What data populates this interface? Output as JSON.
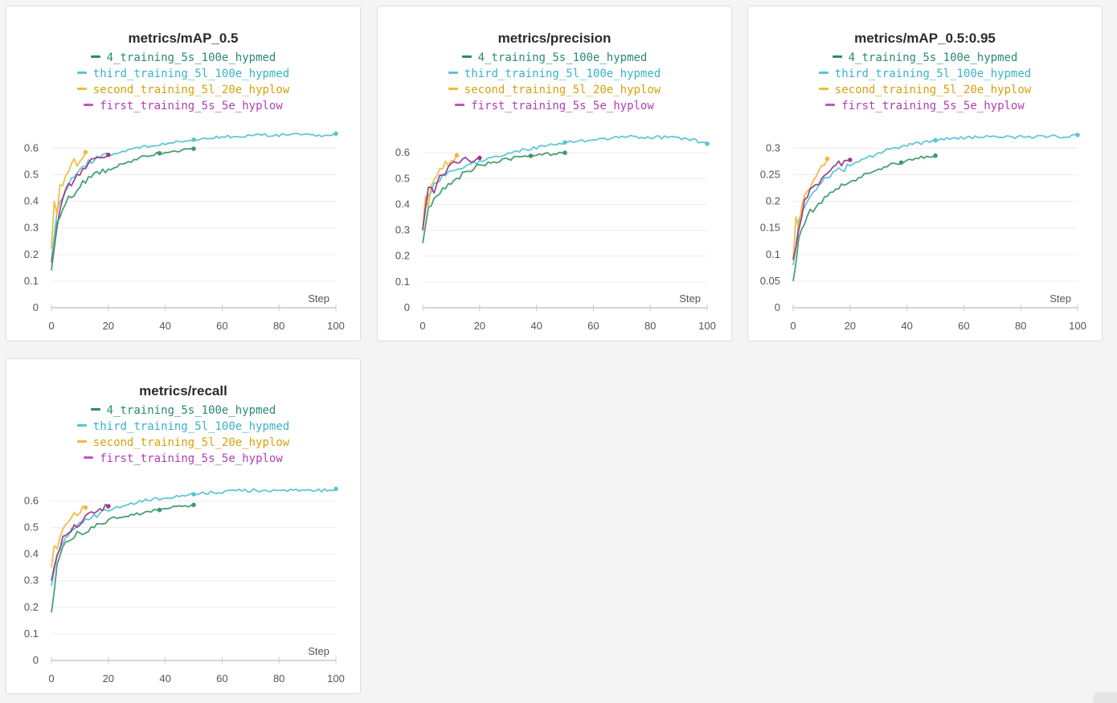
{
  "x_axis_label": "Step",
  "series_legend": [
    {
      "key": "s4",
      "name": "4_training_5s_100e_hypmed",
      "color": "#2a8a74",
      "line_color": "#3f9a6a"
    },
    {
      "key": "third",
      "name": "third_training_5l_100e_hypmed",
      "color": "#3ab2c8",
      "line_color": "#5ac4d2"
    },
    {
      "key": "second",
      "name": "second_training_5l_20e_hyplow",
      "color": "#d8a10c",
      "line_color": "#f0b93a"
    },
    {
      "key": "first",
      "name": "first_training_5s_5e_hyplow",
      "color": "#b040b4",
      "line_color": "#9b3a8c"
    }
  ],
  "chart_data": [
    {
      "type": "line",
      "title": "metrics/mAP_0.5",
      "xlabel": "Step",
      "ylabel": "",
      "xlim": [
        0,
        100
      ],
      "ylim": [
        0,
        0.68
      ],
      "xticks": [
        0,
        20,
        40,
        60,
        80,
        100
      ],
      "yticks": [
        0,
        0.1,
        0.2,
        0.3,
        0.4,
        0.5,
        0.6
      ],
      "yticklabels": [
        "0",
        "0.1",
        "0.2",
        "0.3",
        "0.4",
        "0.5",
        "0.6"
      ],
      "series": [
        {
          "name": "third_training_5l_100e_hypmed",
          "key": "third",
          "end_markers": [
            50,
            100
          ],
          "x": [
            0,
            2,
            4,
            6,
            8,
            10,
            12,
            15,
            18,
            20,
            25,
            30,
            35,
            40,
            45,
            50,
            55,
            60,
            65,
            70,
            75,
            80,
            85,
            90,
            95,
            100
          ],
          "y": [
            0.18,
            0.36,
            0.42,
            0.47,
            0.49,
            0.52,
            0.54,
            0.555,
            0.565,
            0.575,
            0.59,
            0.6,
            0.61,
            0.615,
            0.625,
            0.632,
            0.638,
            0.642,
            0.645,
            0.648,
            0.65,
            0.648,
            0.651,
            0.65,
            0.649,
            0.655
          ]
        },
        {
          "name": "second_training_5l_20e_hyplow",
          "key": "second",
          "end_markers": [
            12
          ],
          "x": [
            0,
            1,
            2,
            3,
            4,
            5,
            6,
            7,
            8,
            9,
            10,
            11,
            12
          ],
          "y": [
            0.22,
            0.4,
            0.36,
            0.45,
            0.47,
            0.49,
            0.5,
            0.53,
            0.55,
            0.54,
            0.56,
            0.57,
            0.585
          ]
        },
        {
          "name": "first_training_5s_5e_hyplow",
          "key": "first",
          "end_markers": [
            20
          ],
          "x": [
            0,
            2,
            4,
            6,
            8,
            10,
            12,
            14,
            16,
            18,
            20
          ],
          "y": [
            0.17,
            0.3,
            0.42,
            0.46,
            0.48,
            0.51,
            0.53,
            0.55,
            0.56,
            0.57,
            0.575
          ]
        },
        {
          "name": "4_training_5s_100e_hypmed",
          "key": "s4",
          "end_markers": [
            38,
            50
          ],
          "x": [
            0,
            2,
            4,
            6,
            8,
            10,
            12,
            14,
            16,
            18,
            20,
            25,
            30,
            35,
            40,
            45,
            50
          ],
          "y": [
            0.14,
            0.31,
            0.37,
            0.41,
            0.43,
            0.46,
            0.48,
            0.49,
            0.5,
            0.51,
            0.52,
            0.54,
            0.56,
            0.575,
            0.585,
            0.59,
            0.598
          ]
        }
      ]
    },
    {
      "type": "line",
      "title": "metrics/precision",
      "xlabel": "Step",
      "ylabel": "",
      "xlim": [
        0,
        100
      ],
      "ylim": [
        0,
        0.7
      ],
      "xticks": [
        0,
        20,
        40,
        60,
        80,
        100
      ],
      "yticks": [
        0,
        0.1,
        0.2,
        0.3,
        0.4,
        0.5,
        0.6
      ],
      "yticklabels": [
        "0",
        "0.1",
        "0.2",
        "0.3",
        "0.4",
        "0.5",
        "0.6"
      ],
      "series": [
        {
          "name": "third_training_5l_100e_hypmed",
          "key": "third",
          "end_markers": [
            50,
            100
          ],
          "x": [
            0,
            2,
            4,
            6,
            8,
            10,
            12,
            15,
            18,
            20,
            25,
            30,
            35,
            40,
            45,
            50,
            55,
            60,
            65,
            70,
            75,
            80,
            85,
            90,
            95,
            100
          ],
          "y": [
            0.3,
            0.44,
            0.47,
            0.5,
            0.51,
            0.53,
            0.54,
            0.55,
            0.56,
            0.57,
            0.58,
            0.6,
            0.61,
            0.62,
            0.63,
            0.64,
            0.645,
            0.65,
            0.655,
            0.66,
            0.662,
            0.658,
            0.66,
            0.655,
            0.65,
            0.635
          ]
        },
        {
          "name": "second_training_5l_20e_hyplow",
          "key": "second",
          "end_markers": [
            12
          ],
          "x": [
            0,
            1,
            2,
            3,
            4,
            5,
            6,
            7,
            8,
            9,
            10,
            11,
            12
          ],
          "y": [
            0.3,
            0.44,
            0.4,
            0.48,
            0.5,
            0.52,
            0.53,
            0.55,
            0.56,
            0.55,
            0.57,
            0.58,
            0.59
          ]
        },
        {
          "name": "first_training_5s_5e_hyplow",
          "key": "first",
          "end_markers": [
            20
          ],
          "x": [
            0,
            2,
            4,
            6,
            8,
            10,
            12,
            14,
            16,
            18,
            20
          ],
          "y": [
            0.3,
            0.47,
            0.45,
            0.52,
            0.53,
            0.55,
            0.56,
            0.57,
            0.58,
            0.57,
            0.58
          ]
        },
        {
          "name": "4_training_5s_100e_hypmed",
          "key": "s4",
          "end_markers": [
            38,
            50
          ],
          "x": [
            0,
            2,
            4,
            6,
            8,
            10,
            12,
            14,
            16,
            18,
            20,
            25,
            30,
            35,
            40,
            45,
            50
          ],
          "y": [
            0.25,
            0.38,
            0.42,
            0.45,
            0.47,
            0.49,
            0.5,
            0.52,
            0.53,
            0.54,
            0.55,
            0.565,
            0.575,
            0.585,
            0.59,
            0.595,
            0.6
          ]
        }
      ]
    },
    {
      "type": "line",
      "title": "metrics/mAP_0.5:0.95",
      "xlabel": "Step",
      "ylabel": "",
      "xlim": [
        0,
        100
      ],
      "ylim": [
        0,
        0.34
      ],
      "xticks": [
        0,
        20,
        40,
        60,
        80,
        100
      ],
      "yticks": [
        0,
        0.05,
        0.1,
        0.15,
        0.2,
        0.25,
        0.3
      ],
      "yticklabels": [
        "0",
        "0.05",
        "0.1",
        "0.15",
        "0.2",
        "0.25",
        "0.3"
      ],
      "series": [
        {
          "name": "third_training_5l_100e_hypmed",
          "key": "third",
          "end_markers": [
            50,
            100
          ],
          "x": [
            0,
            2,
            4,
            6,
            8,
            10,
            12,
            15,
            18,
            20,
            25,
            30,
            35,
            40,
            45,
            50,
            55,
            60,
            65,
            70,
            75,
            80,
            85,
            90,
            95,
            100
          ],
          "y": [
            0.08,
            0.16,
            0.19,
            0.21,
            0.225,
            0.235,
            0.245,
            0.255,
            0.262,
            0.268,
            0.28,
            0.29,
            0.3,
            0.305,
            0.31,
            0.315,
            0.318,
            0.32,
            0.321,
            0.322,
            0.322,
            0.321,
            0.322,
            0.322,
            0.321,
            0.325
          ]
        },
        {
          "name": "second_training_5l_20e_hyplow",
          "key": "second",
          "end_markers": [
            12
          ],
          "x": [
            0,
            1,
            2,
            3,
            4,
            5,
            6,
            7,
            8,
            9,
            10,
            11,
            12
          ],
          "y": [
            0.09,
            0.17,
            0.15,
            0.19,
            0.21,
            0.22,
            0.23,
            0.24,
            0.25,
            0.255,
            0.262,
            0.27,
            0.28
          ]
        },
        {
          "name": "first_training_5s_5e_hyplow",
          "key": "first",
          "end_markers": [
            20
          ],
          "x": [
            0,
            2,
            4,
            6,
            8,
            10,
            12,
            14,
            16,
            18,
            20
          ],
          "y": [
            0.09,
            0.15,
            0.2,
            0.22,
            0.23,
            0.24,
            0.25,
            0.26,
            0.27,
            0.275,
            0.278
          ]
        },
        {
          "name": "4_training_5s_100e_hypmed",
          "key": "s4",
          "end_markers": [
            38,
            50
          ],
          "x": [
            0,
            2,
            4,
            6,
            8,
            10,
            12,
            14,
            16,
            18,
            20,
            25,
            30,
            35,
            40,
            45,
            50
          ],
          "y": [
            0.05,
            0.13,
            0.16,
            0.18,
            0.19,
            0.2,
            0.21,
            0.22,
            0.225,
            0.23,
            0.235,
            0.25,
            0.26,
            0.27,
            0.275,
            0.282,
            0.286
          ]
        }
      ]
    },
    {
      "type": "line",
      "title": "metrics/recall",
      "xlabel": "Step",
      "ylabel": "",
      "xlim": [
        0,
        100
      ],
      "ylim": [
        0,
        0.68
      ],
      "xticks": [
        0,
        20,
        40,
        60,
        80,
        100
      ],
      "yticks": [
        0,
        0.1,
        0.2,
        0.3,
        0.4,
        0.5,
        0.6
      ],
      "yticklabels": [
        "0",
        "0.1",
        "0.2",
        "0.3",
        "0.4",
        "0.5",
        "0.6"
      ],
      "series": [
        {
          "name": "third_training_5l_100e_hypmed",
          "key": "third",
          "end_markers": [
            50,
            100
          ],
          "x": [
            0,
            2,
            4,
            6,
            8,
            10,
            12,
            15,
            18,
            20,
            25,
            30,
            35,
            40,
            45,
            50,
            55,
            60,
            65,
            70,
            75,
            80,
            85,
            90,
            95,
            100
          ],
          "y": [
            0.28,
            0.4,
            0.45,
            0.48,
            0.5,
            0.52,
            0.53,
            0.545,
            0.555,
            0.565,
            0.58,
            0.595,
            0.605,
            0.61,
            0.62,
            0.625,
            0.63,
            0.635,
            0.638,
            0.64,
            0.64,
            0.638,
            0.64,
            0.642,
            0.64,
            0.645
          ]
        },
        {
          "name": "second_training_5l_20e_hyplow",
          "key": "second",
          "end_markers": [
            12
          ],
          "x": [
            0,
            1,
            2,
            3,
            4,
            5,
            6,
            7,
            8,
            9,
            10,
            11,
            12
          ],
          "y": [
            0.35,
            0.44,
            0.41,
            0.47,
            0.49,
            0.51,
            0.52,
            0.53,
            0.55,
            0.54,
            0.56,
            0.57,
            0.575
          ]
        },
        {
          "name": "first_training_5s_5e_hyplow",
          "key": "first",
          "end_markers": [
            20
          ],
          "x": [
            0,
            2,
            4,
            6,
            8,
            10,
            12,
            14,
            16,
            18,
            20
          ],
          "y": [
            0.3,
            0.4,
            0.46,
            0.49,
            0.5,
            0.52,
            0.54,
            0.55,
            0.57,
            0.575,
            0.58
          ]
        },
        {
          "name": "4_training_5s_100e_hypmed",
          "key": "s4",
          "end_markers": [
            38,
            50
          ],
          "x": [
            0,
            2,
            4,
            6,
            8,
            10,
            12,
            14,
            16,
            18,
            20,
            25,
            30,
            35,
            40,
            45,
            50
          ],
          "y": [
            0.18,
            0.36,
            0.42,
            0.45,
            0.47,
            0.48,
            0.49,
            0.5,
            0.51,
            0.52,
            0.53,
            0.54,
            0.55,
            0.56,
            0.57,
            0.58,
            0.585
          ]
        }
      ]
    }
  ]
}
